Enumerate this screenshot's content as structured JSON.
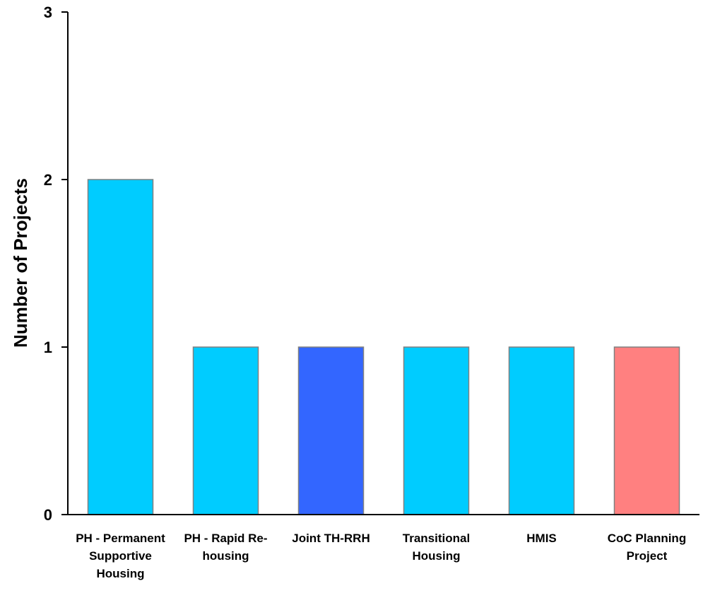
{
  "chart_data": {
    "type": "bar",
    "title": "",
    "xlabel": "",
    "ylabel": "Number of Projects",
    "ylim": [
      0,
      3
    ],
    "yticks": [
      0,
      1,
      2,
      3
    ],
    "categories": [
      "PH - Permanent Supportive Housing",
      "PH - Rapid Re-housing",
      "Joint TH-RRH",
      "Transitional Housing",
      "HMIS",
      "CoC Planning Project"
    ],
    "values": [
      2,
      1,
      1,
      1,
      1,
      1
    ],
    "bar_colors": [
      "#00CCFF",
      "#00CCFF",
      "#3366FF",
      "#00CCFF",
      "#00CCFF",
      "#FF8080"
    ],
    "bar_edge_color": "#808080",
    "grid": false,
    "legend": "none"
  }
}
